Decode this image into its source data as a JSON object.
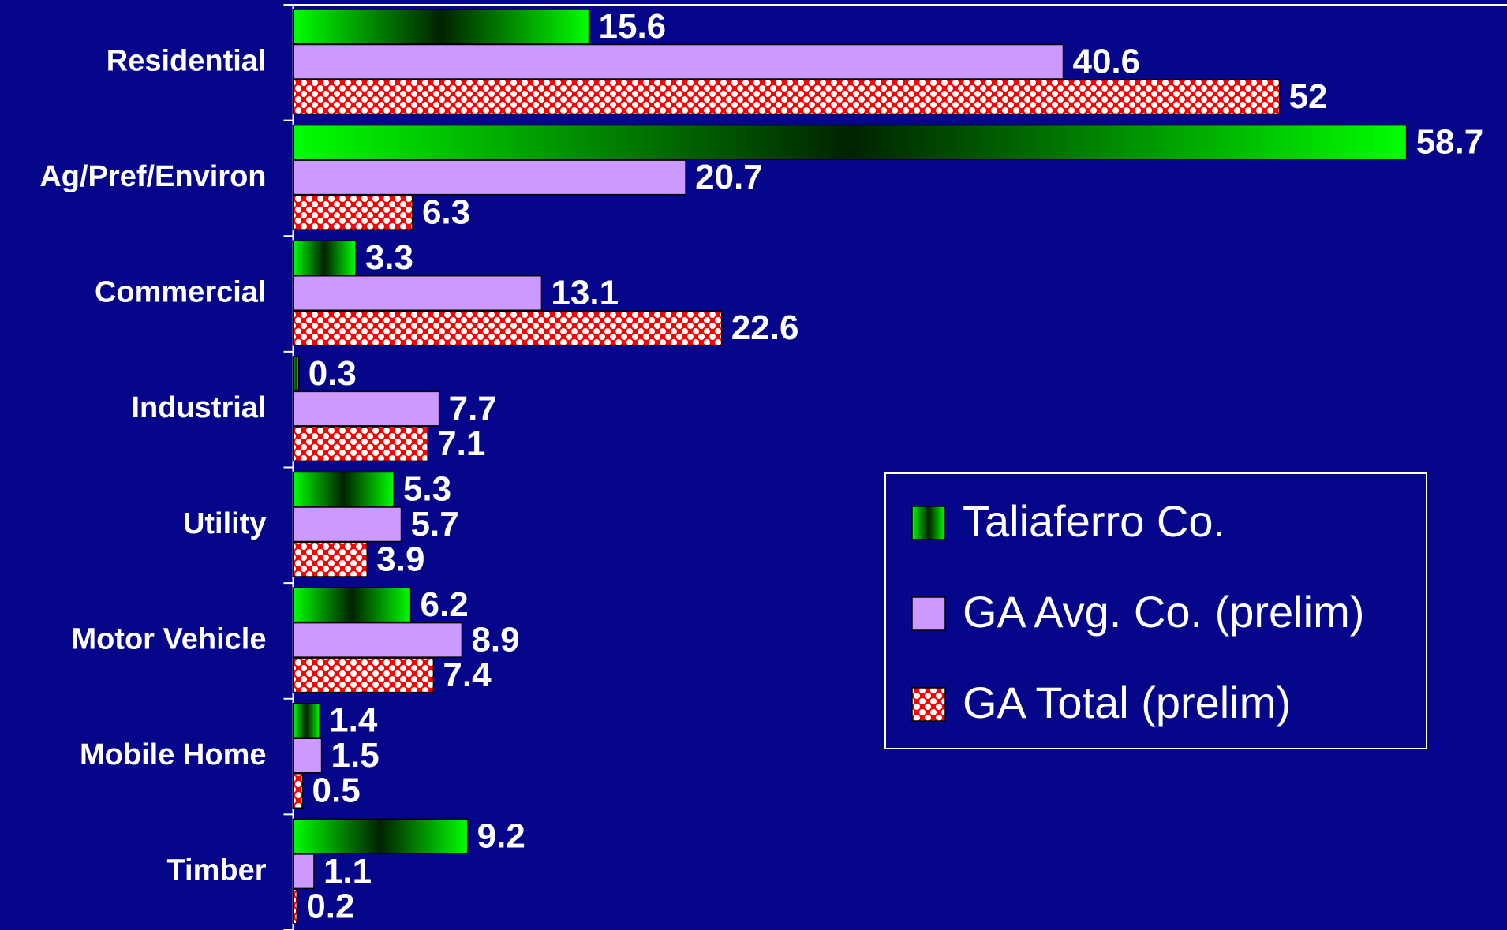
{
  "chart_data": {
    "type": "bar",
    "orientation": "horizontal",
    "categories": [
      "Residential",
      "Ag/Pref/Environ",
      "Commercial",
      "Industrial",
      "Utility",
      "Motor Vehicle",
      "Mobile Home",
      "Timber"
    ],
    "series": [
      {
        "name": "Taliaferro Co.",
        "color": "#00ff00",
        "values": [
          15.6,
          58.7,
          3.3,
          0.3,
          5.3,
          6.2,
          1.4,
          9.2
        ]
      },
      {
        "name": "GA Avg. Co. (prelim)",
        "color": "#cc99ff",
        "values": [
          40.6,
          20.7,
          13.1,
          7.7,
          5.7,
          8.9,
          1.5,
          1.1
        ]
      },
      {
        "name": "GA Total (prelim)",
        "color": "#ff0000",
        "values": [
          52,
          6.3,
          22.6,
          7.1,
          3.9,
          7.4,
          0.5,
          0.2
        ]
      }
    ],
    "xlim": [
      0,
      64
    ],
    "legend": "right"
  }
}
